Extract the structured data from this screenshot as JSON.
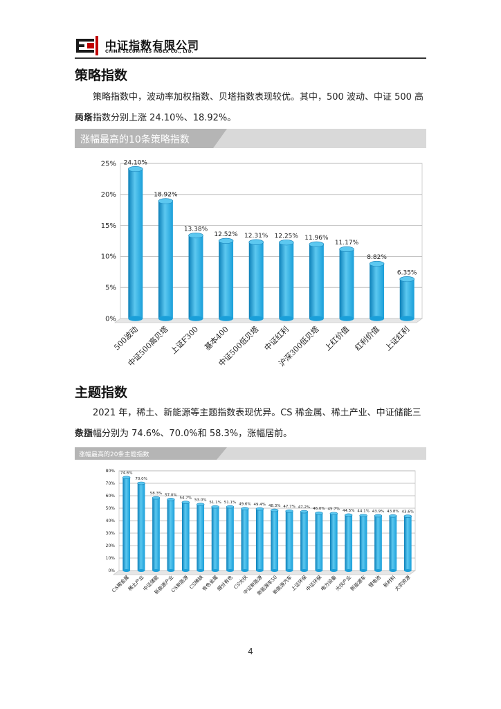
{
  "header": {
    "company_cn": "中证指数有限公司",
    "company_en": "CHINA SECURITIES INDEX CO., LTD."
  },
  "section1": {
    "title": "策略指数",
    "para_line1": "策略指数中，波动率加权指数、贝塔指数表现较优。其中，500 波动、中证 500 高贝塔",
    "para_line2": "两条指数分别上涨 24.10%、18.92%。",
    "banner": "涨幅最高的10条策略指数"
  },
  "section2": {
    "title": "主题指数",
    "para_line1": "2021 年，稀土、新能源等主题指数表现优异。CS 稀金属、稀土产业、中证储能三条指",
    "para_line2": "数涨幅分别为 74.6%、70.0%和 58.3%，涨幅居前。",
    "banner": "涨幅最高的20条主题指数"
  },
  "page_number": "4",
  "colors": {
    "bar": "#1a9fd9",
    "bar_top": "#5cc8f0",
    "banner": "#c8c8c8",
    "grid": "#b0b0b0"
  },
  "chart_data": [
    {
      "type": "bar",
      "categories": [
        "500波动",
        "中证500高贝塔",
        "上证F300",
        "基本400",
        "中证500低贝塔",
        "中证红利",
        "沪深300低贝塔",
        "上红价值",
        "红利价值",
        "上证红利"
      ],
      "values": [
        24.1,
        18.92,
        13.38,
        12.52,
        12.31,
        12.25,
        11.96,
        11.17,
        8.82,
        6.35
      ],
      "value_labels": [
        "24.10%",
        "18.92%",
        "13.38%",
        "12.52%",
        "12.31%",
        "12.25%",
        "11.96%",
        "11.17%",
        "8.82%",
        "6.35%"
      ],
      "y_ticks": [
        "0%",
        "5%",
        "10%",
        "15%",
        "20%",
        "25%"
      ],
      "ylim": [
        0,
        25
      ],
      "grid": true
    },
    {
      "type": "bar",
      "categories": [
        "CS稀金属",
        "稀土产业",
        "中证储能",
        "新能源产业",
        "CS新能源",
        "CS稀缺",
        "有色金属",
        "细分有色",
        "CS光伏",
        "中证新能源",
        "新能源车50",
        "新能源汽车",
        "上证环保",
        "中证环保",
        "电力设备",
        "光伏产业",
        "新能源车",
        "锂电池",
        "新材料",
        "大宗资源"
      ],
      "values": [
        74.6,
        70.0,
        58.3,
        57.0,
        54.7,
        53.0,
        51.1,
        51.1,
        49.6,
        49.4,
        48.3,
        47.7,
        47.2,
        46.0,
        45.7,
        44.5,
        44.1,
        43.9,
        43.8,
        43.6
      ],
      "value_labels": [
        "74.6%",
        "70.0%",
        "58.3%",
        "57.0%",
        "54.7%",
        "53.0%",
        "51.1%",
        "51.1%",
        "49.6%",
        "49.4%",
        "48.3%",
        "47.7%",
        "47.2%",
        "46.0%",
        "45.7%",
        "44.5%",
        "44.1%",
        "43.9%",
        "43.8%",
        "43.6%"
      ],
      "y_ticks": [
        "0%",
        "10%",
        "20%",
        "30%",
        "40%",
        "50%",
        "60%",
        "70%",
        "80%"
      ],
      "ylim": [
        0,
        80
      ],
      "grid": true
    }
  ]
}
